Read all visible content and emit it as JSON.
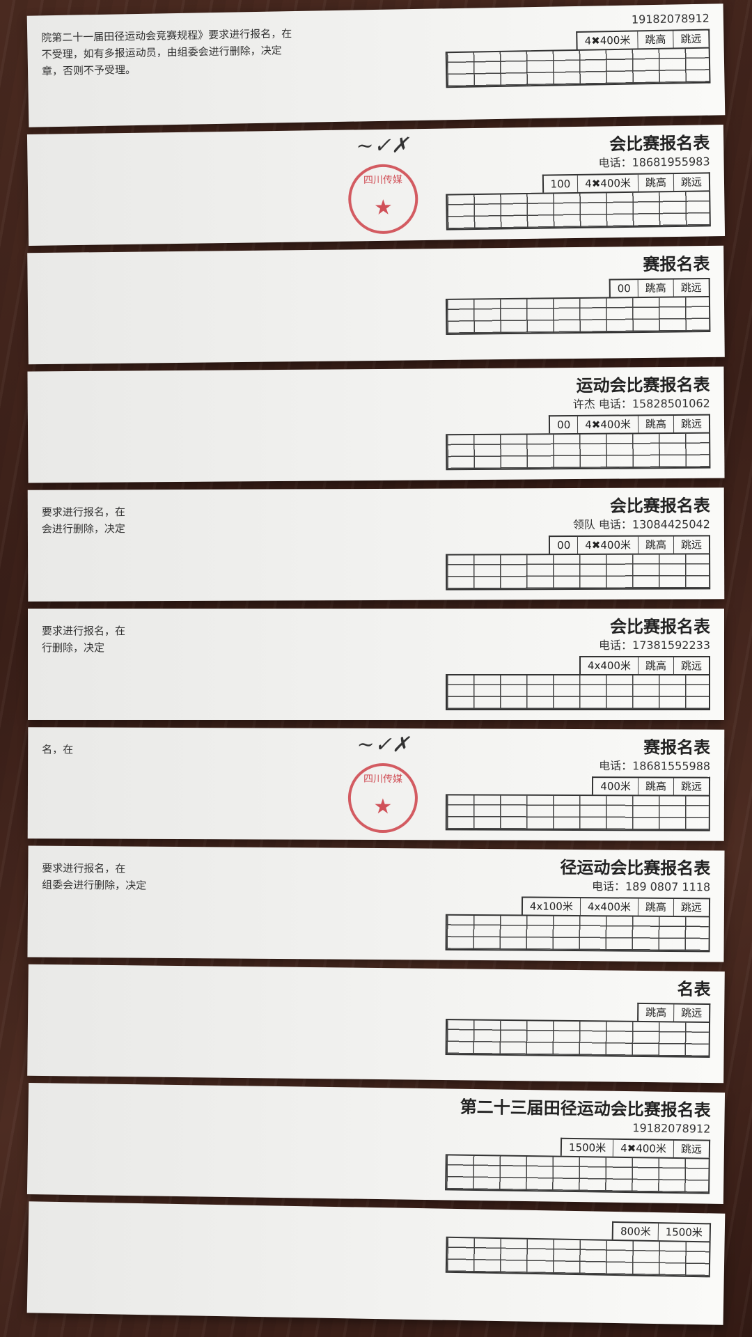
{
  "scene": {
    "background": "dark wooden table",
    "paper_color": "#f2f2f0",
    "stamp_color": "#c82832",
    "stamp_text": "四川传媒学院 体育艺术学院",
    "signature": "邹杨"
  },
  "sheets": [
    {
      "title": "",
      "phone": "19182078912",
      "cells": [
        "4✖400米",
        "跳高",
        "跳远"
      ],
      "footer": [
        "院第二十一届田径运动会竞赛规程》要求进行报名，在",
        "不受理，如有多报运动员，由组委会进行删除，决定",
        "章，否则不予受理。"
      ]
    },
    {
      "title": "会比赛报名表",
      "phone": "电话：18681955983",
      "cells": [
        "100",
        "4✖400米",
        "跳高",
        "跳远"
      ],
      "footer": [],
      "stamp": true
    },
    {
      "title": "赛报名表",
      "phone": "",
      "cells": [
        "00",
        "跳高",
        "跳远"
      ],
      "footer": []
    },
    {
      "title": "运动会比赛报名表",
      "phone": "许杰  电话：15828501062",
      "cells": [
        "00",
        "4✖400米",
        "跳高",
        "跳远"
      ],
      "footer": []
    },
    {
      "title": "会比赛报名表",
      "phone": "领队  电话：13084425042",
      "cells": [
        "00",
        "4✖400米",
        "跳高",
        "跳远"
      ],
      "footer": [
        "要求进行报名，在",
        "会进行删除，决定"
      ]
    },
    {
      "title": "会比赛报名表",
      "phone": "电话：17381592233",
      "cells": [
        "4x400米",
        "跳高",
        "跳远"
      ],
      "footer": [
        "要求进行报名，在",
        "行删除，决定"
      ]
    },
    {
      "title": "赛报名表",
      "phone": "电话：18681555988",
      "cells": [
        "400米",
        "跳高",
        "跳远"
      ],
      "footer": [
        "名，在"
      ],
      "stamp": true
    },
    {
      "title": "径运动会比赛报名表",
      "phone": "电话：189 0807 1118",
      "cells": [
        "4x100米",
        "4x400米",
        "跳高",
        "跳远"
      ],
      "footer": [
        "要求进行报名，在",
        "组委会进行删除，决定"
      ]
    },
    {
      "title": "名表",
      "phone": "",
      "cells": [
        "跳高",
        "跳远"
      ],
      "footer": []
    },
    {
      "title": "第二十三届田径运动会比赛报名表",
      "phone": "19182078912",
      "cells": [
        "1500米",
        "4✖400米",
        "跳远"
      ],
      "footer": []
    },
    {
      "title": "",
      "phone": "",
      "cells": [
        "800米",
        "1500米"
      ],
      "footer": []
    }
  ]
}
